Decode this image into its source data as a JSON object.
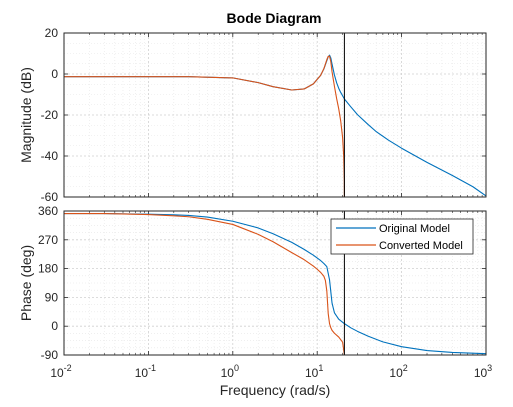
{
  "chart_data": {
    "type": "line",
    "title": "Bode Diagram",
    "xlabel": "Frequency  (rad/s)",
    "x_scale": "log",
    "xlim": [
      0.01,
      1000
    ],
    "x_ticks": [
      0.01,
      0.1,
      1,
      10,
      100,
      1000
    ],
    "x_tick_labels": [
      {
        "base": "10",
        "exp": "-2"
      },
      {
        "base": "10",
        "exp": "-1"
      },
      {
        "base": "10",
        "exp": "0"
      },
      {
        "base": "10",
        "exp": "1"
      },
      {
        "base": "10",
        "exp": "2"
      },
      {
        "base": "10",
        "exp": "3"
      }
    ],
    "grid": true,
    "legend_location": "northeast of phase panel",
    "vertical_marker_x": 21,
    "panels": [
      {
        "name": "magnitude",
        "ylabel": "Magnitude (dB)",
        "ylim": [
          -60,
          20
        ],
        "y_ticks": [
          -60,
          -40,
          -20,
          0,
          20
        ],
        "series": [
          {
            "name": "Original Model",
            "color": "#0072BD",
            "x": [
              0.01,
              0.1,
              0.3,
              1,
              2,
              3,
              5,
              7,
              9,
              11,
              12,
              13,
              13.5,
              14,
              14.5,
              15,
              16,
              17,
              18,
              19,
              20,
              21,
              25,
              30,
              40,
              50,
              70,
              100,
              200,
              400,
              700,
              1000
            ],
            "y": [
              -1.3,
              -1.3,
              -1.3,
              -1.9,
              -4.2,
              -6.2,
              -7.8,
              -7.3,
              -4.8,
              -0.6,
              2.5,
              6.5,
              8.3,
              9.2,
              7.8,
              4.8,
              -0.5,
              -4.3,
              -7.0,
              -9.0,
              -10.6,
              -12.2,
              -16.0,
              -19.8,
              -24.6,
              -28.1,
              -32.3,
              -36.2,
              -43.1,
              -49.5,
              -55.0,
              -59.5
            ]
          },
          {
            "name": "Converted Model",
            "color": "#D95319",
            "x": [
              0.01,
              0.1,
              0.3,
              1,
              2,
              3,
              5,
              7,
              9,
              11,
              12,
              13,
              13.5,
              14,
              14.5,
              15,
              16,
              17,
              18,
              19,
              20,
              20.6,
              20.95,
              21
            ],
            "y": [
              -1.3,
              -1.3,
              -1.3,
              -1.9,
              -4.2,
              -6.2,
              -7.8,
              -7.3,
              -4.8,
              -0.6,
              2.6,
              7.0,
              8.6,
              8.7,
              6.0,
              1.0,
              -6.0,
              -12.0,
              -17.0,
              -23.0,
              -31.0,
              -40.0,
              -52.0,
              -60.0
            ]
          }
        ]
      },
      {
        "name": "phase",
        "ylabel": "Phase (deg)",
        "ylim": [
          -90,
          360
        ],
        "y_ticks": [
          -90,
          0,
          90,
          180,
          270,
          360
        ],
        "series": [
          {
            "name": "Original Model",
            "color": "#0072BD",
            "x": [
              0.01,
              0.03,
              0.1,
              0.2,
              0.3,
              0.5,
              1,
              2,
              3,
              5,
              7,
              9,
              11,
              12,
              13,
              14,
              15,
              16,
              18,
              21,
              25,
              30,
              40,
              60,
              100,
              200,
              400,
              1000
            ],
            "y": [
              352,
              352,
              350,
              348,
              346,
              341,
              328,
              307,
              289,
              262,
              240,
              222,
              205,
              196,
              186,
              145,
              72,
              42,
              22,
              8,
              -5,
              -16,
              -31,
              -49,
              -64,
              -76,
              -82,
              -86
            ]
          },
          {
            "name": "Converted Model",
            "color": "#D95319",
            "x": [
              0.01,
              0.03,
              0.1,
              0.2,
              0.3,
              0.5,
              1,
              2,
              3,
              5,
              7,
              9,
              10,
              11,
              12,
              12.5,
              13,
              13.5,
              14,
              14.5,
              15,
              16,
              18,
              20,
              21
            ],
            "y": [
              352,
              352,
              349,
              345,
              342,
              334,
              318,
              287,
              264,
              230,
              208,
              188,
              178,
              168,
              156,
              143,
              110,
              40,
              8,
              -5,
              -13,
              -22,
              -34,
              -50,
              -90
            ]
          }
        ]
      }
    ]
  }
}
